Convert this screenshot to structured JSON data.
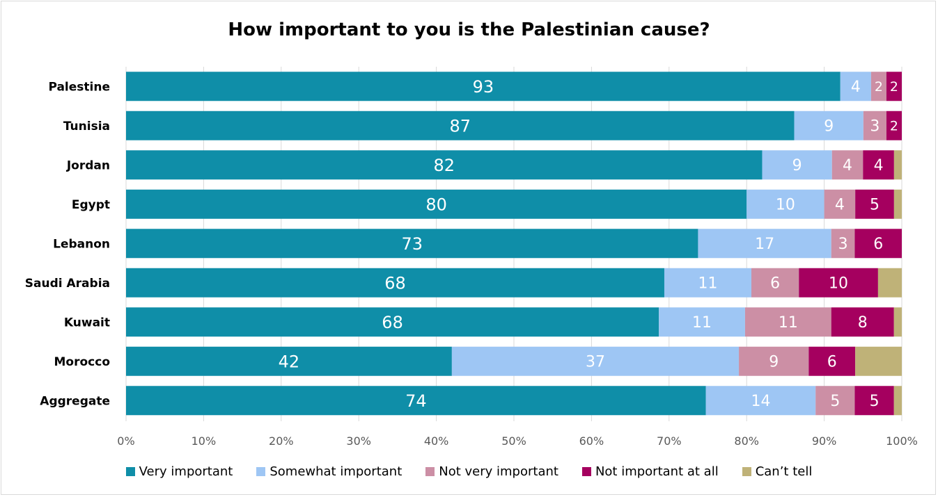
{
  "chart_data": {
    "type": "bar",
    "orientation": "horizontal",
    "stacked": "percent",
    "title": "How important to you is the Palestinian cause?",
    "categories": [
      "Palestine",
      "Tunisia",
      "Jordan",
      "Egypt",
      "Lebanon",
      "Saudi Arabia",
      "Kuwait",
      "Morocco",
      "Aggregate"
    ],
    "series": [
      {
        "name": "Very important",
        "color": "#0f8ea8",
        "values": [
          93,
          87,
          82,
          80,
          73,
          68,
          68,
          42,
          74
        ]
      },
      {
        "name": "Somewhat important",
        "color": "#9ec6f4",
        "values": [
          4,
          9,
          9,
          10,
          17,
          11,
          11,
          37,
          14
        ]
      },
      {
        "name": "Not very important",
        "color": "#cc8fa5",
        "values": [
          2,
          3,
          4,
          4,
          3,
          6,
          11,
          9,
          5
        ]
      },
      {
        "name": "Not important at all",
        "color": "#a5005f",
        "values": [
          2,
          2,
          4,
          5,
          6,
          10,
          8,
          6,
          5
        ]
      },
      {
        "name": "Can’t tell",
        "color": "#bfb278",
        "values": [
          0,
          0,
          1,
          1,
          0,
          3,
          1,
          6,
          1
        ]
      }
    ],
    "x_ticks": [
      "0%",
      "10%",
      "20%",
      "30%",
      "40%",
      "50%",
      "60%",
      "70%",
      "80%",
      "90%",
      "100%"
    ],
    "xlim": [
      0,
      100
    ],
    "grid": "vertical",
    "legend_position": "bottom"
  }
}
